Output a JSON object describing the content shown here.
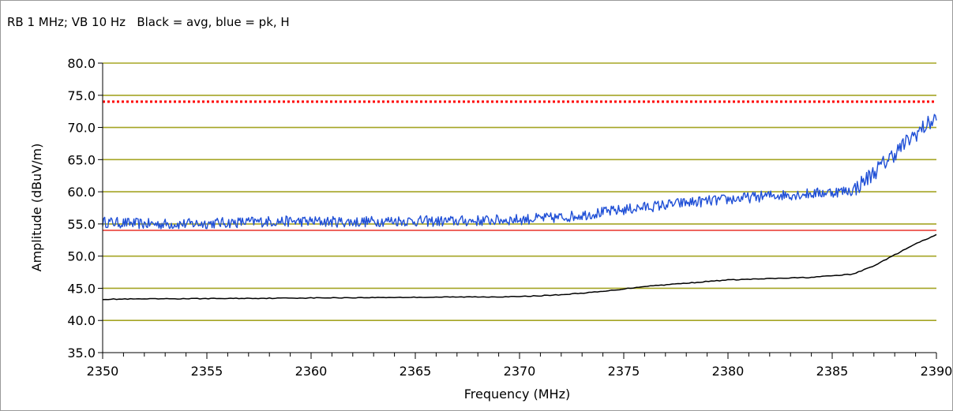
{
  "header": {
    "text": "RB 1 MHz; VB 10 Hz   Black = avg, blue = pk, H"
  },
  "colors": {
    "grid": "#a5a524",
    "axis": "#000000",
    "peak": "#1f4fd6",
    "avg": "#000000",
    "limit_peak": "#ff0000",
    "limit_avg": "#e8322a"
  },
  "chart_data": {
    "type": "line",
    "title": "",
    "xlabel": "Frequency (MHz)",
    "ylabel": "Amplitude (dBuV/m)",
    "xlim": [
      2350,
      2390
    ],
    "ylim": [
      35,
      80
    ],
    "x_ticks": [
      "2350",
      "2355",
      "2360",
      "2365",
      "2370",
      "2375",
      "2380",
      "2385",
      "2390"
    ],
    "y_ticks": [
      "35.0",
      "40.0",
      "45.0",
      "50.0",
      "55.0",
      "60.0",
      "65.0",
      "70.0",
      "75.0",
      "80.0"
    ],
    "grid": "horizontal",
    "limits": [
      {
        "value": 74.0,
        "style": "dotted",
        "color": "#ff0000"
      },
      {
        "value": 54.0,
        "style": "solid",
        "color": "#e8322a"
      }
    ],
    "series": [
      {
        "color": "blue",
        "x": [
          2350,
          2352,
          2354,
          2356,
          2358,
          2360,
          2362,
          2364,
          2366,
          2368,
          2370,
          2372,
          2374,
          2376,
          2378,
          2380,
          2382,
          2384,
          2386,
          2387,
          2388,
          2389,
          2390
        ],
        "values": [
          55.3,
          55.0,
          55.0,
          55.2,
          55.4,
          55.4,
          55.3,
          55.5,
          55.4,
          55.5,
          55.7,
          56.0,
          56.8,
          57.6,
          58.3,
          58.8,
          59.4,
          59.7,
          60.2,
          63.0,
          66.0,
          69.0,
          71.5
        ]
      },
      {
        "color": "black",
        "x": [
          2350,
          2355,
          2360,
          2365,
          2370,
          2372,
          2374,
          2376,
          2378,
          2380,
          2382,
          2384,
          2386,
          2387,
          2388,
          2389,
          2390
        ],
        "values": [
          43.3,
          43.4,
          43.5,
          43.6,
          43.7,
          44.0,
          44.5,
          45.3,
          45.8,
          46.3,
          46.5,
          46.7,
          47.2,
          48.5,
          50.2,
          51.9,
          53.3
        ]
      }
    ]
  }
}
